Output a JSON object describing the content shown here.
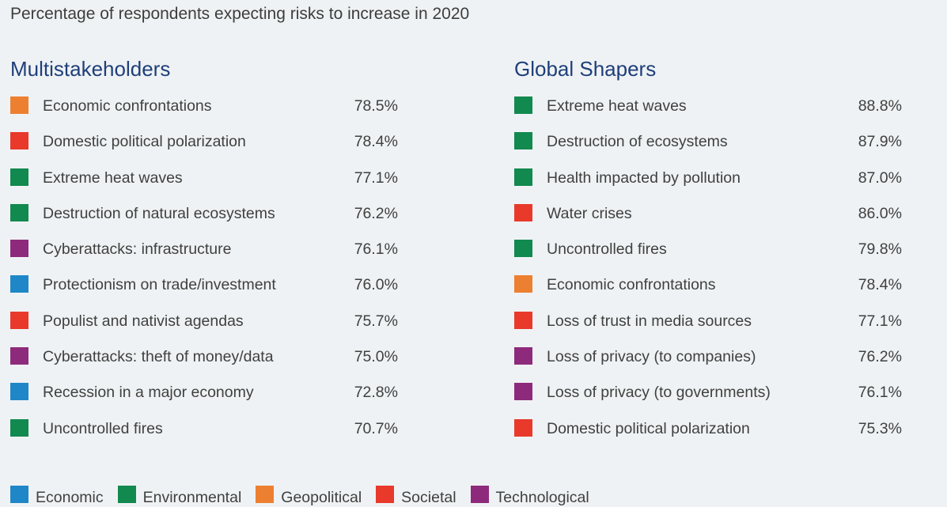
{
  "subtitle": "Percentage of respondents expecting risks to increase in 2020",
  "colors": {
    "Economic": "#1f87c8",
    "Environmental": "#12894f",
    "Geopolitical": "#ec8030",
    "Societal": "#e8392b",
    "Technological": "#8e2a7c"
  },
  "chart_data": [
    {
      "type": "table",
      "title": "Multistakeholders",
      "rows": [
        {
          "label": "Economic confrontations",
          "value": "78.5%",
          "category": "Geopolitical"
        },
        {
          "label": "Domestic political polarization",
          "value": "78.4%",
          "category": "Societal"
        },
        {
          "label": "Extreme heat waves",
          "value": "77.1%",
          "category": "Environmental"
        },
        {
          "label": "Destruction of natural ecosystems",
          "value": "76.2%",
          "category": "Environmental"
        },
        {
          "label": "Cyberattacks: infrastructure",
          "value": "76.1%",
          "category": "Technological"
        },
        {
          "label": "Protectionism on trade/investment",
          "value": "76.0%",
          "category": "Economic"
        },
        {
          "label": "Populist and nativist agendas",
          "value": "75.7%",
          "category": "Societal"
        },
        {
          "label": "Cyberattacks: theft of money/data",
          "value": "75.0%",
          "category": "Technological"
        },
        {
          "label": "Recession in a major economy",
          "value": "72.8%",
          "category": "Economic"
        },
        {
          "label": "Uncontrolled fires",
          "value": "70.7%",
          "category": "Environmental"
        }
      ]
    },
    {
      "type": "table",
      "title": "Global Shapers",
      "rows": [
        {
          "label": "Extreme heat waves",
          "value": "88.8%",
          "category": "Environmental"
        },
        {
          "label": "Destruction of ecosystems",
          "value": "87.9%",
          "category": "Environmental"
        },
        {
          "label": "Health impacted by pollution",
          "value": "87.0%",
          "category": "Environmental"
        },
        {
          "label": "Water crises",
          "value": "86.0%",
          "category": "Societal"
        },
        {
          "label": "Uncontrolled fires",
          "value": "79.8%",
          "category": "Environmental"
        },
        {
          "label": "Economic confrontations",
          "value": "78.4%",
          "category": "Geopolitical"
        },
        {
          "label": "Loss of trust in media sources",
          "value": "77.1%",
          "category": "Societal"
        },
        {
          "label": "Loss of privacy (to companies)",
          "value": "76.2%",
          "category": "Technological"
        },
        {
          "label": "Loss of privacy (to governments)",
          "value": "76.1%",
          "category": "Technological"
        },
        {
          "label": "Domestic political polarization",
          "value": "75.3%",
          "category": "Societal"
        }
      ]
    }
  ],
  "legend": [
    "Economic",
    "Environmental",
    "Geopolitical",
    "Societal",
    "Technological"
  ]
}
